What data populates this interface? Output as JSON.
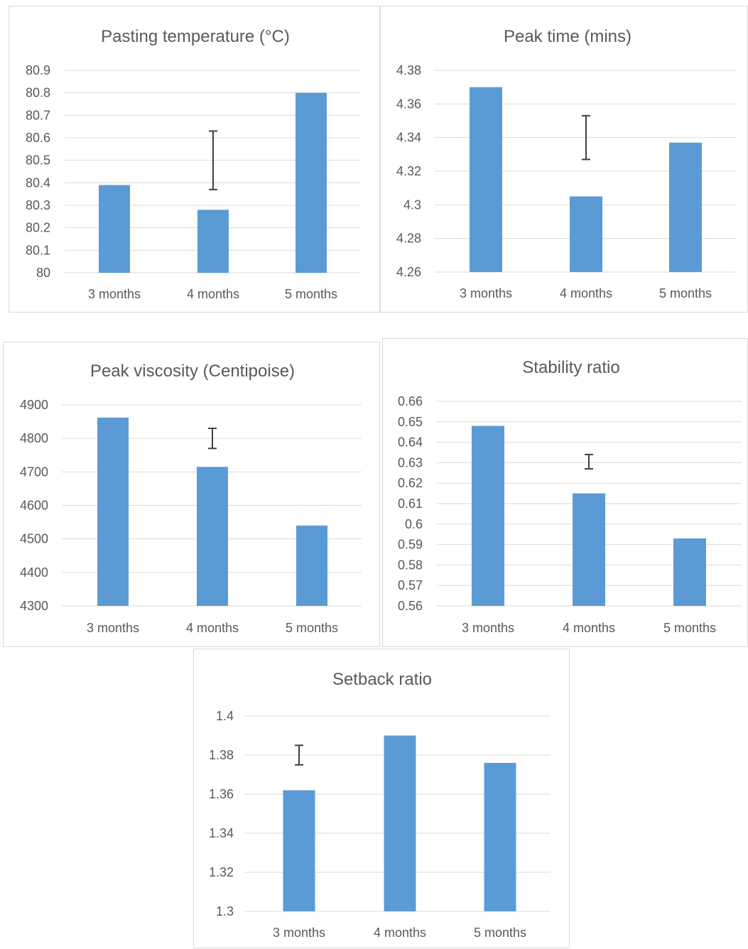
{
  "chart_data": [
    {
      "type": "bar",
      "title": "Pasting temperature (°C)",
      "categories": [
        "3 months",
        "4 months",
        "5 months"
      ],
      "values": [
        80.39,
        80.28,
        80.8
      ],
      "yticks": [
        "80",
        "80.1",
        "80.2",
        "80.3",
        "80.4",
        "80.5",
        "80.6",
        "80.7",
        "80.8",
        "80.9"
      ],
      "ylim": [
        80,
        80.9
      ],
      "error_bar": {
        "category_index": 1,
        "low": 80.37,
        "high": 80.63
      },
      "grid": true,
      "bar_color": "#5b9bd5"
    },
    {
      "type": "bar",
      "title": "Peak time (mins)",
      "categories": [
        "3 months",
        "4 months",
        "5 months"
      ],
      "values": [
        4.37,
        4.305,
        4.337
      ],
      "yticks": [
        "4.26",
        "4.28",
        "4.3",
        "4.32",
        "4.34",
        "4.36",
        "4.38"
      ],
      "ylim": [
        4.26,
        4.38
      ],
      "error_bar": {
        "category_index": 1,
        "low": 4.327,
        "high": 4.353
      },
      "grid": true,
      "bar_color": "#5b9bd5"
    },
    {
      "type": "bar",
      "title": "Peak viscosity (Centipoise)",
      "categories": [
        "3 months",
        "4 months",
        "5 months"
      ],
      "values": [
        4862,
        4715,
        4540
      ],
      "yticks": [
        "4300",
        "4400",
        "4500",
        "4600",
        "4700",
        "4800",
        "4900"
      ],
      "ylim": [
        4300,
        4900
      ],
      "error_bar": {
        "category_index": 1,
        "low": 4770,
        "high": 4830
      },
      "grid": true,
      "bar_color": "#5b9bd5"
    },
    {
      "type": "bar",
      "title": "Stability ratio",
      "categories": [
        "3 months",
        "4 months",
        "5 months"
      ],
      "values": [
        0.648,
        0.615,
        0.593
      ],
      "yticks": [
        "0.56",
        "0.57",
        "0.58",
        "0.59",
        "0.6",
        "0.61",
        "0.62",
        "0.63",
        "0.64",
        "0.65",
        "0.66"
      ],
      "ylim": [
        0.56,
        0.66
      ],
      "error_bar": {
        "category_index": 1,
        "low": 0.627,
        "high": 0.634
      },
      "grid": true,
      "bar_color": "#5b9bd5"
    },
    {
      "type": "bar",
      "title": "Setback ratio",
      "categories": [
        "3 months",
        "4 months",
        "5 months"
      ],
      "values": [
        1.362,
        1.39,
        1.376
      ],
      "yticks": [
        "1.3",
        "1.32",
        "1.34",
        "1.36",
        "1.38",
        "1.4"
      ],
      "ylim": [
        1.3,
        1.4
      ],
      "error_bar": {
        "category_index": 0,
        "low": 1.375,
        "high": 1.385
      },
      "grid": true,
      "bar_color": "#5b9bd5"
    }
  ]
}
